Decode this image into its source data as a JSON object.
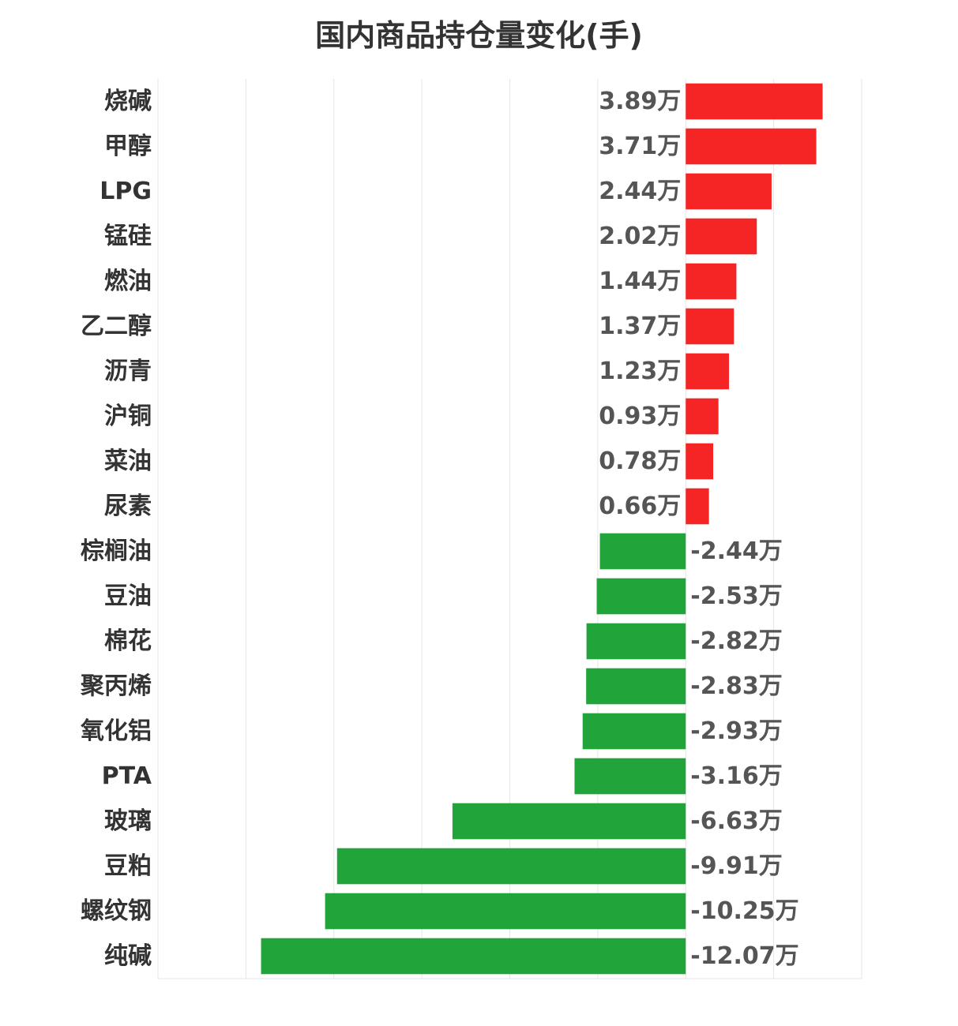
{
  "chart_data": {
    "type": "bar",
    "orientation": "horizontal",
    "title": "国内商品持仓量变化(手)",
    "unit_suffix": "万",
    "xlim": [
      -15,
      5
    ],
    "grid": true,
    "colors": {
      "positive": "#f52525",
      "negative": "#21a43a"
    },
    "categories": [
      "烧碱",
      "甲醇",
      "LPG",
      "锰硅",
      "燃油",
      "乙二醇",
      "沥青",
      "沪铜",
      "菜油",
      "尿素",
      "棕榈油",
      "豆油",
      "棉花",
      "聚丙烯",
      "氧化铝",
      "PTA",
      "玻璃",
      "豆粕",
      "螺纹钢",
      "纯碱"
    ],
    "values": [
      3.89,
      3.71,
      2.44,
      2.02,
      1.44,
      1.37,
      1.23,
      0.93,
      0.78,
      0.66,
      -2.44,
      -2.53,
      -2.82,
      -2.83,
      -2.93,
      -3.16,
      -6.63,
      -9.91,
      -10.25,
      -12.07
    ],
    "value_labels": [
      "3.89万",
      "3.71万",
      "2.44万",
      "2.02万",
      "1.44万",
      "1.37万",
      "1.23万",
      "0.93万",
      "0.78万",
      "0.66万",
      "-2.44万",
      "-2.53万",
      "-2.82万",
      "-2.83万",
      "-2.93万",
      "-3.16万",
      "-6.63万",
      "-9.91万",
      "-10.25万",
      "-12.07万"
    ]
  }
}
